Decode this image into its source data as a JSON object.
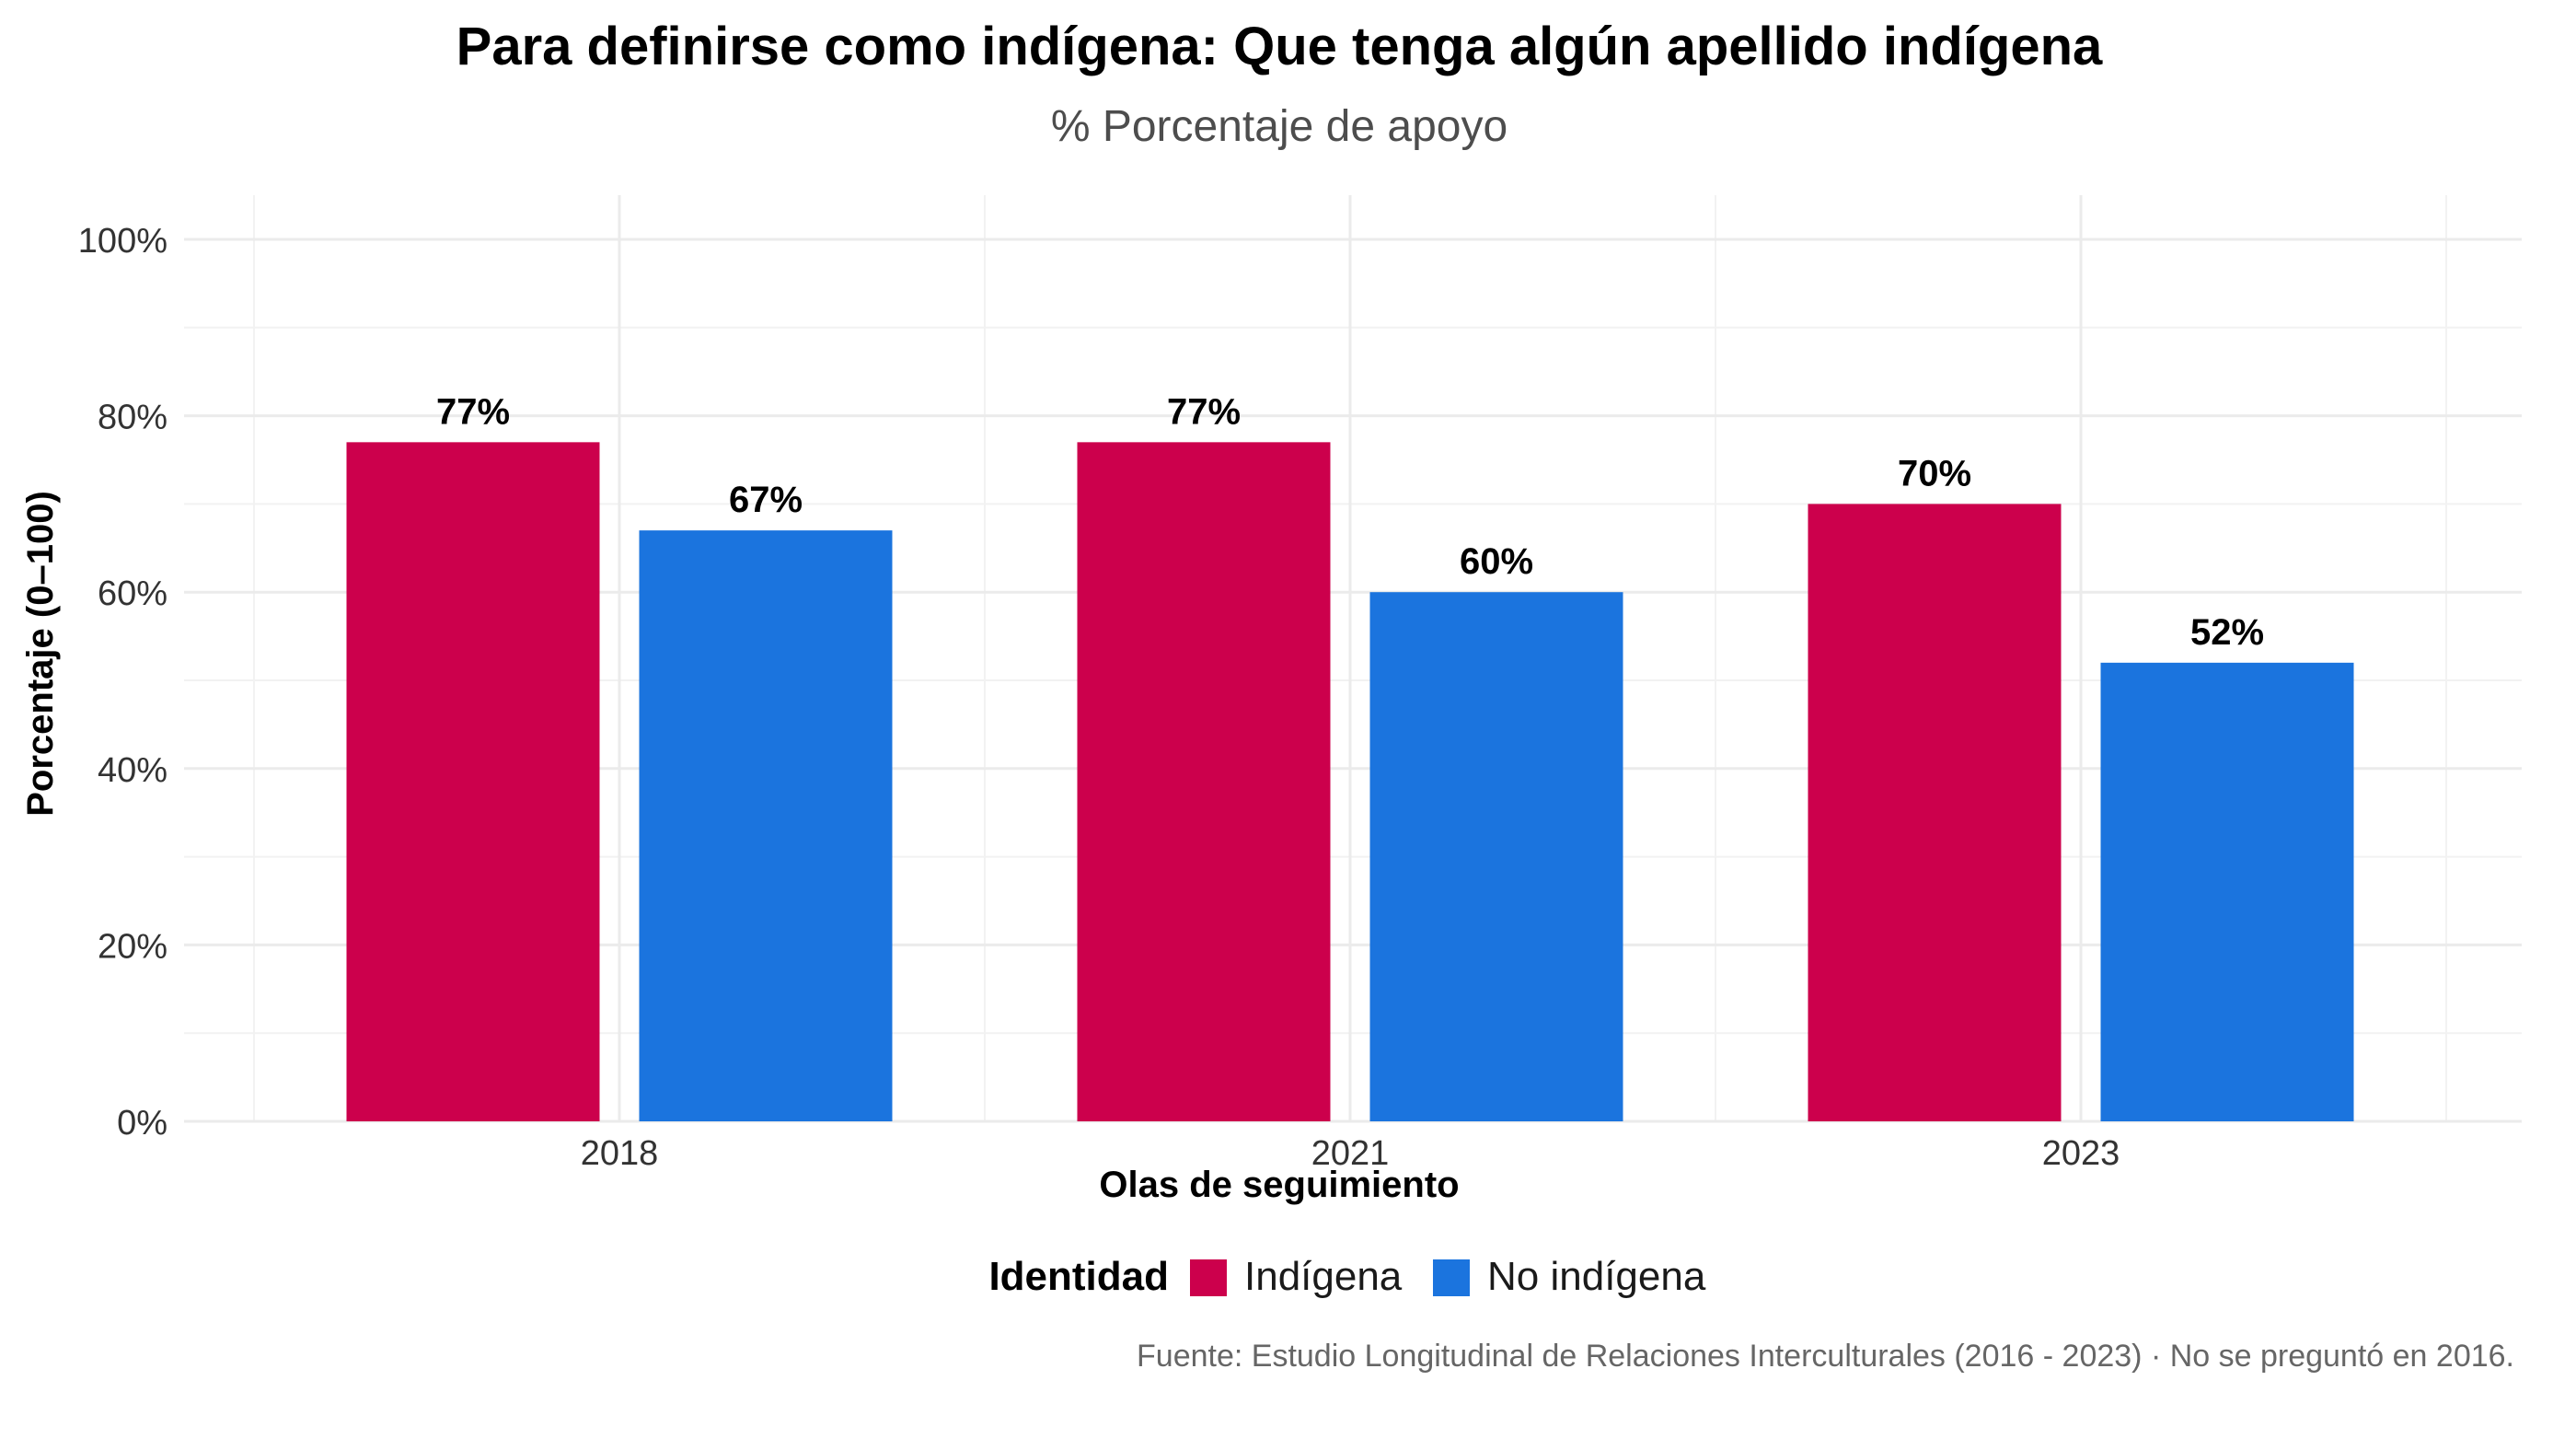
{
  "chart_data": {
    "type": "bar",
    "title": "Para definirse como indígena: Que tenga algún apellido indígena",
    "subtitle": "% Porcentaje de apoyo",
    "xlabel": "Olas de seguimiento",
    "ylabel": "Porcentaje (0–100)",
    "categories": [
      "2018",
      "2021",
      "2023"
    ],
    "ylim": [
      0,
      100
    ],
    "yticks": [
      0,
      20,
      40,
      60,
      80,
      100
    ],
    "ytick_labels": [
      "0%",
      "20%",
      "40%",
      "60%",
      "80%",
      "100%"
    ],
    "grid": true,
    "legend": {
      "title": "Identidad",
      "position": "bottom"
    },
    "series": [
      {
        "name": "Indígena",
        "color": "#CC004C",
        "values": [
          77,
          77,
          70
        ],
        "labels": [
          "77%",
          "77%",
          "70%"
        ]
      },
      {
        "name": "No indígena",
        "color": "#1B74DE",
        "values": [
          67,
          60,
          52
        ],
        "labels": [
          "67%",
          "60%",
          "52%"
        ]
      }
    ],
    "caption": "Fuente: Estudio Longitudinal de Relaciones Interculturales  (2016 - 2023) · No se preguntó en 2016."
  }
}
